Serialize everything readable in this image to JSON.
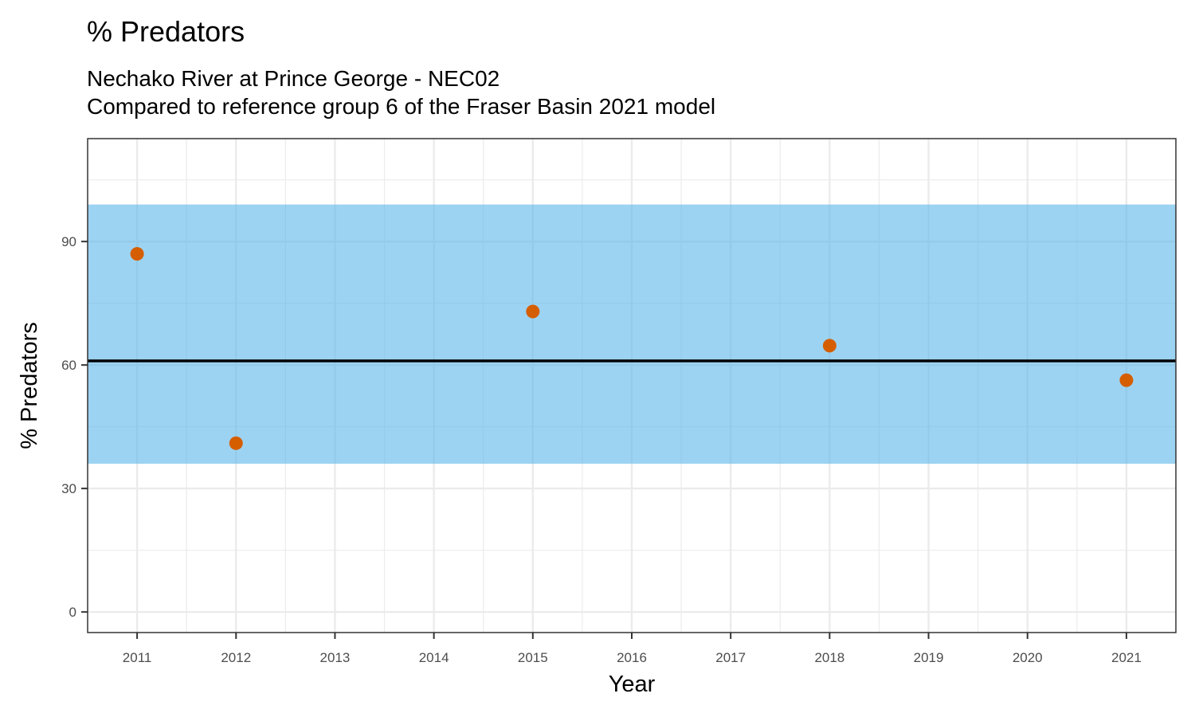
{
  "chart_data": {
    "type": "scatter",
    "title": "% Predators",
    "subtitle_lines": [
      "Nechako River at Prince George - NEC02",
      "Compared to reference group 6 of the Fraser Basin 2021 model"
    ],
    "xlabel": "Year",
    "ylabel": "% Predators",
    "xlim": [
      2010.5,
      2021.5
    ],
    "ylim": [
      -5,
      115
    ],
    "x_ticks": [
      2011,
      2012,
      2013,
      2014,
      2015,
      2016,
      2017,
      2018,
      2019,
      2020,
      2021
    ],
    "x_tick_labels": [
      "2011",
      "2012",
      "2013",
      "2014",
      "2015",
      "2016",
      "2017",
      "2018",
      "2019",
      "2020",
      "2021"
    ],
    "y_ticks": [
      0,
      30,
      60,
      90
    ],
    "y_tick_labels": [
      "0",
      "30",
      "60",
      "90"
    ],
    "grid": true,
    "reference_band": {
      "lower": 36,
      "upper": 99,
      "color": "#56b4e9"
    },
    "reference_line": {
      "value": 61,
      "color": "#000000"
    },
    "points": [
      {
        "x": 2011,
        "y": 87
      },
      {
        "x": 2012,
        "y": 41
      },
      {
        "x": 2015,
        "y": 73
      },
      {
        "x": 2018,
        "y": 64.7
      },
      {
        "x": 2021,
        "y": 56.3
      }
    ],
    "point_color": "#d55e00",
    "colors": {
      "grid": "#ebebeb",
      "panel_border": "#333333",
      "tick_label": "#4d4d4d"
    }
  }
}
